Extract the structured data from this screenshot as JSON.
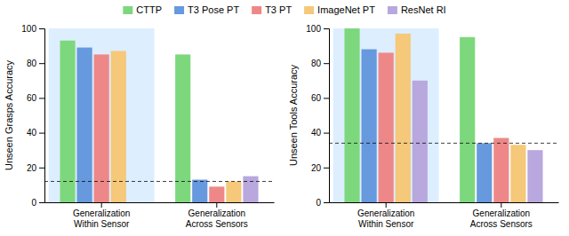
{
  "chart_data": [
    {
      "type": "bar",
      "ylabel": "Unseen Grasps Accuracy",
      "categories": [
        "Generalization\nWithin Sensor",
        "Generalization\nAcross Sensors"
      ],
      "series": [
        {
          "name": "CTTP",
          "color": "#7dd87d",
          "values": [
            93,
            85
          ]
        },
        {
          "name": "T3 Pose PT",
          "color": "#6699dd",
          "values": [
            89,
            13
          ]
        },
        {
          "name": "T3 PT",
          "color": "#ee8888",
          "values": [
            85,
            9
          ]
        },
        {
          "name": "ImageNet PT",
          "color": "#f5c87a",
          "values": [
            87,
            12
          ]
        },
        {
          "name": "ResNet RI",
          "color": "#b8a8dd",
          "values": [
            0,
            15
          ]
        }
      ],
      "reference_line": 12,
      "ylim": [
        0,
        100
      ],
      "yticks": [
        0,
        20,
        40,
        60,
        80,
        100
      ],
      "grid": false,
      "legend": "top"
    },
    {
      "type": "bar",
      "ylabel": "Unseen Tools Accuracy",
      "categories": [
        "Generalization\nWithin Sensor",
        "Generalization\nAcross Sensors"
      ],
      "series": [
        {
          "name": "CTTP",
          "color": "#7dd87d",
          "values": [
            100,
            95
          ]
        },
        {
          "name": "T3 Pose PT",
          "color": "#6699dd",
          "values": [
            88,
            34
          ]
        },
        {
          "name": "T3 PT",
          "color": "#ee8888",
          "values": [
            86,
            37
          ]
        },
        {
          "name": "ImageNet PT",
          "color": "#f5c87a",
          "values": [
            97,
            33
          ]
        },
        {
          "name": "ResNet RI",
          "color": "#b8a8dd",
          "values": [
            70,
            30
          ]
        }
      ],
      "reference_line": 34,
      "ylim": [
        0,
        100
      ],
      "yticks": [
        0,
        20,
        40,
        60,
        80,
        100
      ],
      "grid": false
    }
  ]
}
